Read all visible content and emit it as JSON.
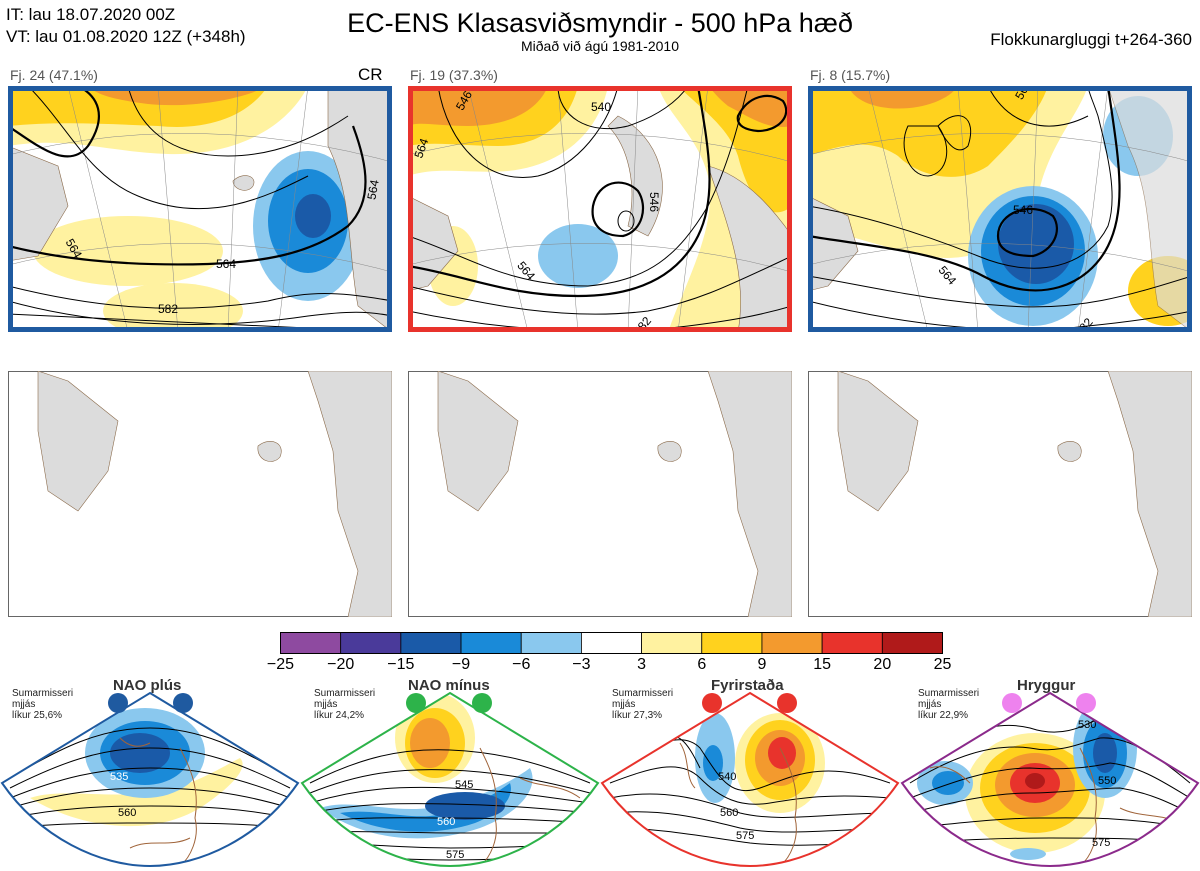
{
  "header": {
    "it_line": "IT: lau 18.07.2020 00Z",
    "vt_line": "VT: lau 01.08.2020 12Z  (+348h)",
    "title": "EC-ENS Klasasviðsmyndir - 500 hPa hæð",
    "subtitle": "Miðað við ágú 1981-2010",
    "window": "Flokkunargluggi t+264-360"
  },
  "panels": [
    {
      "label": "Fj. 24 (47.1%)",
      "tag": "CR",
      "border_color": "#1f5aa0",
      "contours": [
        "564",
        "564",
        "564",
        "582"
      ]
    },
    {
      "label": "Fj. 19 (37.3%)",
      "tag": "",
      "border_color": "#e8332c",
      "contours": [
        "546",
        "540",
        "564",
        "564",
        "582",
        "546"
      ]
    },
    {
      "label": "Fj. 8 (15.7%)",
      "tag": "",
      "border_color": "#1f5aa0",
      "contours": [
        "546",
        "564",
        "564",
        "582"
      ]
    }
  ],
  "colorbar": {
    "ticks": [
      "−25",
      "−20",
      "−15",
      "−9",
      "−6",
      "−3",
      "3",
      "6",
      "9",
      "15",
      "20",
      "25"
    ],
    "colors": [
      "#8e4aa0",
      "#4a3a9a",
      "#1a5aa8",
      "#1a8ad8",
      "#8ac8ee",
      "#ffffff",
      "#fff2a0",
      "#ffd21e",
      "#f39a2e",
      "#e8332c",
      "#b01a1a"
    ]
  },
  "regimes": [
    {
      "name": "NAO plús",
      "note_line1": "Sumarmisseri",
      "note_line2": "mjjás",
      "note_line3": "líkur 25,6%",
      "dot_color": "#1f5aa0",
      "border_color": "#1f5aa0",
      "contours": [
        "535",
        "560"
      ]
    },
    {
      "name": "NAO mínus",
      "note_line1": "Sumarmisseri",
      "note_line2": "mjjás",
      "note_line3": "líkur 24,2%",
      "dot_color": "#2db34a",
      "border_color": "#2db34a",
      "contours": [
        "545",
        "560",
        "575"
      ]
    },
    {
      "name": "Fyrirstaða",
      "note_line1": "Sumarmisseri",
      "note_line2": "mjjás",
      "note_line3": "líkur 27,3%",
      "dot_color": "#e8332c",
      "border_color": "#e8332c",
      "contours": [
        "540",
        "560",
        "575"
      ]
    },
    {
      "name": "Hryggur",
      "note_line1": "Sumarmisseri",
      "note_line2": "mjjás",
      "note_line3": "líkur 22,9%",
      "dot_color": "#ee82ee",
      "border_color": "#8b2a8b",
      "contours": [
        "530",
        "550",
        "575"
      ]
    }
  ]
}
